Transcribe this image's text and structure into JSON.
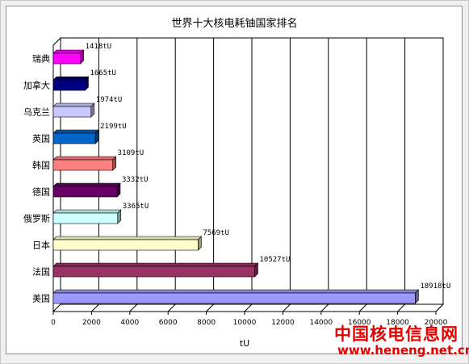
{
  "chart_data": {
    "type": "bar",
    "orientation": "horizontal",
    "title": "世界十大核电耗铀国家排名",
    "xlabel": "tU",
    "ylabel": "",
    "xlim": [
      0,
      20000
    ],
    "xticks": [
      0,
      2000,
      4000,
      6000,
      8000,
      10000,
      12000,
      14000,
      16000,
      18000,
      20000
    ],
    "grid": "vertical",
    "categories": [
      "瑞典",
      "加拿大",
      "乌克兰",
      "英国",
      "韩国",
      "德国",
      "俄罗斯",
      "日本",
      "法国",
      "美国"
    ],
    "values": [
      1418,
      1665,
      1974,
      2199,
      3109,
      3332,
      3365,
      7569,
      10527,
      18918
    ],
    "data_labels": [
      "1418tU",
      "1665tU",
      "1974tU",
      "2199tU",
      "3109tU",
      "3332tU",
      "3365tU",
      "7569tU",
      "10527tU",
      "18918tU"
    ],
    "colors": [
      "#ff00ff",
      "#000080",
      "#c8c8ff",
      "#0066cc",
      "#ff8080",
      "#660066",
      "#ccffff",
      "#ffffcc",
      "#993366",
      "#9999ff"
    ]
  },
  "watermark": {
    "line1": "中国核电信息网",
    "line2": "www.heneng.net.cn"
  }
}
